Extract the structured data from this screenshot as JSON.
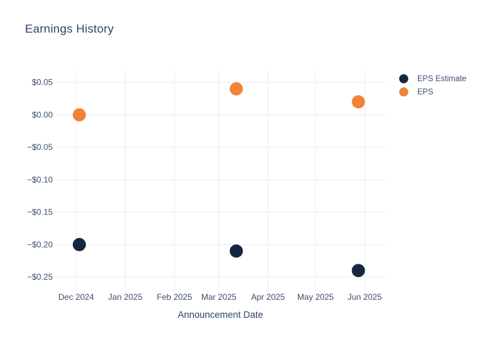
{
  "chart_data": {
    "type": "scatter",
    "title": "Earnings History",
    "xlabel": "Announcement Date",
    "ylabel": "",
    "x": [
      "2024-12-03",
      "2025-03-12",
      "2025-05-28"
    ],
    "series": [
      {
        "name": "EPS Estimate",
        "color": "#15273f",
        "values": [
          -0.2,
          -0.21,
          -0.24
        ]
      },
      {
        "name": "EPS",
        "color": "#f28336",
        "values": [
          0.0,
          0.04,
          0.02
        ]
      }
    ],
    "x_ticks": [
      {
        "date": "2024-12-01",
        "label": "Dec 2024"
      },
      {
        "date": "2025-01-01",
        "label": "Jan 2025"
      },
      {
        "date": "2025-02-01",
        "label": "Feb 2025"
      },
      {
        "date": "2025-03-01",
        "label": "Mar 2025"
      },
      {
        "date": "2025-04-01",
        "label": "Apr 2025"
      },
      {
        "date": "2025-05-01",
        "label": "May 2025"
      },
      {
        "date": "2025-06-01",
        "label": "Jun 2025"
      }
    ],
    "y_ticks": [
      {
        "value": 0.05,
        "label": "$0.05"
      },
      {
        "value": 0.0,
        "label": "$0.00"
      },
      {
        "value": -0.05,
        "label": "−$0.05"
      },
      {
        "value": -0.1,
        "label": "−$0.10"
      },
      {
        "value": -0.15,
        "label": "−$0.15"
      },
      {
        "value": -0.2,
        "label": "−$0.20"
      },
      {
        "value": -0.25,
        "label": "−$0.25"
      }
    ],
    "xlim": [
      "2024-11-18",
      "2025-06-14"
    ],
    "ylim": [
      -0.268,
      0.07
    ],
    "grid": true,
    "legend_position": "outside-top-right",
    "marker_diameter_px": 19
  },
  "colors": {
    "background": "#ffffff",
    "grid": "#e9eef6",
    "title_text": "#2f4468",
    "axis_text": "#3e4e6d",
    "eps_estimate": "#15273f",
    "eps": "#f28336"
  }
}
